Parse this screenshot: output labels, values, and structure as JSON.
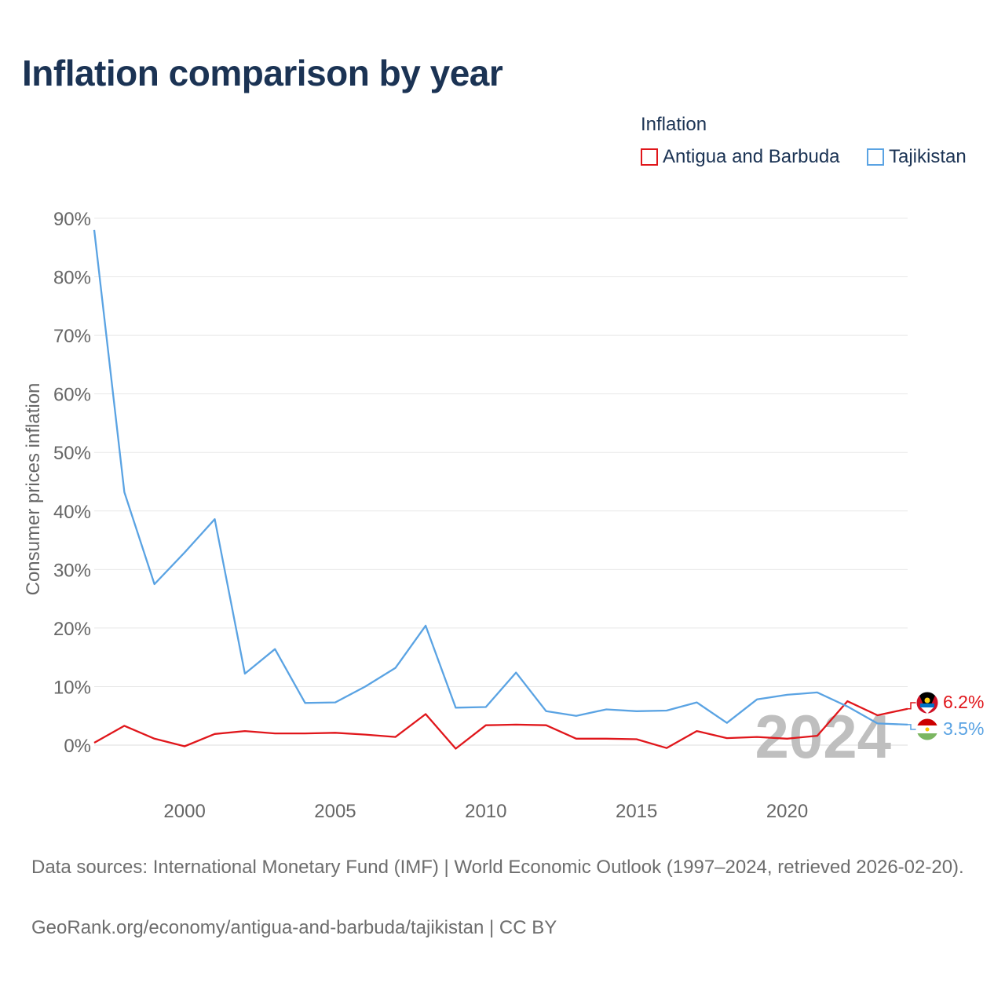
{
  "title": "Inflation comparison by year",
  "legend": {
    "title": "Inflation",
    "items": [
      {
        "label": "Antigua and Barbuda",
        "color": "#e0161b"
      },
      {
        "label": "Tajikistan",
        "color": "#5aa3e3"
      }
    ]
  },
  "footer": {
    "sources": "Data sources: International Monetary Fund (IMF) | World Economic Outlook (1997–2024, retrieved 2026-02-20).",
    "attribution": "GeoRank.org/economy/antigua-and-barbuda/tajikistan | CC BY"
  },
  "chart_data": {
    "type": "line",
    "ylabel": "Consumer prices inflation",
    "xlabel": "",
    "ylim": [
      -7,
      90
    ],
    "xlim": [
      1997,
      2024
    ],
    "y_ticks": [
      0,
      10,
      20,
      30,
      40,
      50,
      60,
      70,
      80,
      90
    ],
    "y_tick_labels": [
      "0%",
      "10%",
      "20%",
      "30%",
      "40%",
      "50%",
      "60%",
      "70%",
      "80%",
      "90%"
    ],
    "x_ticks": [
      2000,
      2005,
      2010,
      2015,
      2020
    ],
    "x_tick_labels": [
      "2000",
      "2005",
      "2010",
      "2015",
      "2020"
    ],
    "year_watermark": "2024",
    "x": [
      1997,
      1998,
      1999,
      2000,
      2001,
      2002,
      2003,
      2004,
      2005,
      2006,
      2007,
      2008,
      2009,
      2010,
      2011,
      2012,
      2013,
      2014,
      2015,
      2016,
      2017,
      2018,
      2019,
      2020,
      2021,
      2022,
      2023,
      2024
    ],
    "series": [
      {
        "name": "Antigua and Barbuda",
        "color": "#e0161b",
        "end_label": "6.2%",
        "values": [
          0.4,
          3.3,
          1.1,
          -0.2,
          1.9,
          2.4,
          2.0,
          2.0,
          2.1,
          1.8,
          1.4,
          5.3,
          -0.6,
          3.4,
          3.5,
          3.4,
          1.1,
          1.1,
          1.0,
          -0.5,
          2.4,
          1.2,
          1.4,
          1.1,
          1.6,
          7.5,
          5.1,
          6.2
        ]
      },
      {
        "name": "Tajikistan",
        "color": "#5aa3e3",
        "end_label": "3.5%",
        "values": [
          88.0,
          43.2,
          27.5,
          32.9,
          38.6,
          12.2,
          16.4,
          7.2,
          7.3,
          10.0,
          13.2,
          20.4,
          6.4,
          6.5,
          12.4,
          5.8,
          5.0,
          6.1,
          5.8,
          5.9,
          7.3,
          3.8,
          7.8,
          8.6,
          9.0,
          6.6,
          3.7,
          3.5
        ]
      }
    ]
  }
}
